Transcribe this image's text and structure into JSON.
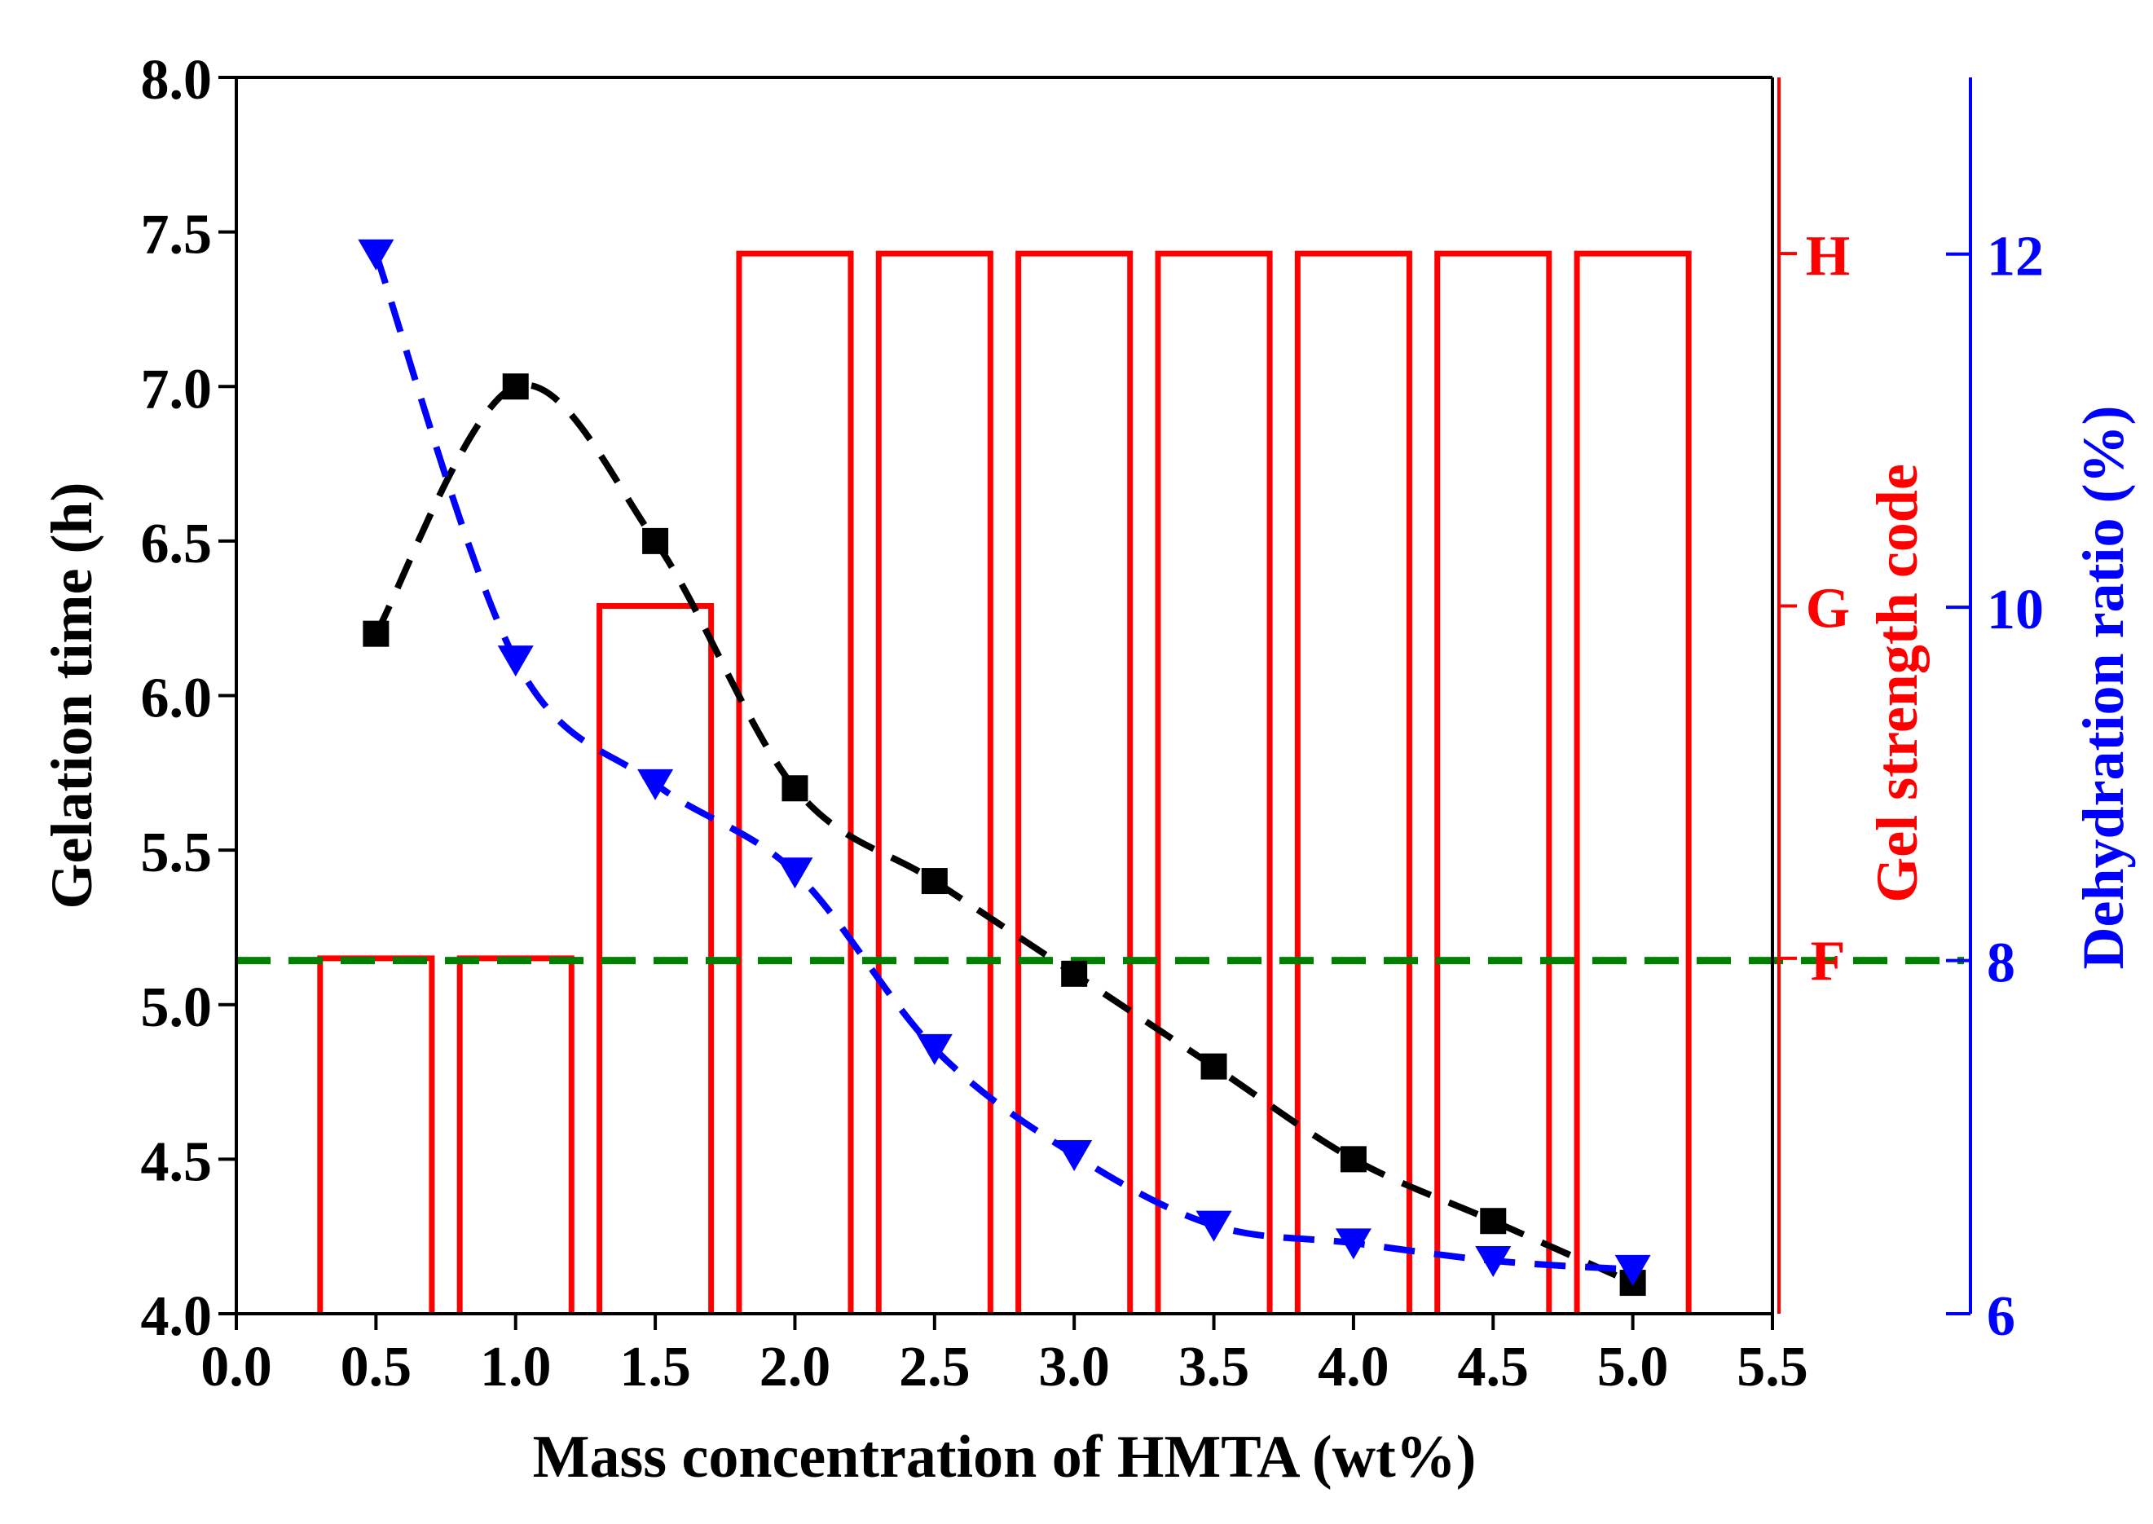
{
  "chart_data": {
    "type": "bar+line",
    "title": "",
    "xlabel": "Mass concentration of HMTA (wt%)",
    "xlim": [
      0.0,
      5.5
    ],
    "x_ticks": [
      "0.0",
      "0.5",
      "1.0",
      "1.5",
      "2.0",
      "2.5",
      "3.0",
      "3.5",
      "4.0",
      "4.5",
      "5.0",
      "5.5"
    ],
    "y_left": {
      "label": "Gelation time (h)",
      "ylim": [
        4.0,
        8.0
      ],
      "ticks": [
        "4.0",
        "4.5",
        "5.0",
        "5.5",
        "6.0",
        "6.5",
        "7.0",
        "7.5",
        "8.0"
      ],
      "color": "#000000"
    },
    "y_right1": {
      "label": "Gel strength code",
      "ticks": [
        "F",
        "G",
        "H"
      ],
      "tick_values_left_units": [
        5.15,
        6.29,
        7.43
      ],
      "color": "#ff0000"
    },
    "y_right2": {
      "label": "Dehydration ratio (%)",
      "ylim": [
        6,
        13
      ],
      "ticks": [
        "6",
        "8",
        "10",
        "12"
      ],
      "color": "#0000ff"
    },
    "bars": {
      "name": "Gel strength code",
      "color": "#ff0000",
      "x": [
        0.5,
        1.0,
        1.5,
        2.0,
        2.5,
        3.0,
        3.5,
        4.0,
        4.5,
        5.0
      ],
      "codes": [
        "F",
        "F",
        "G",
        "H",
        "H",
        "H",
        "H",
        "H",
        "H",
        "H"
      ],
      "width": 0.4
    },
    "series": [
      {
        "name": "Gelation time",
        "axis": "left",
        "color": "#000000",
        "marker": "square",
        "x": [
          0.5,
          1.0,
          1.5,
          2.0,
          2.5,
          3.0,
          3.5,
          4.0,
          4.5,
          5.0
        ],
        "values": [
          6.2,
          7.0,
          6.5,
          5.7,
          5.4,
          5.1,
          4.8,
          4.5,
          4.3,
          4.1
        ]
      },
      {
        "name": "Dehydration ratio",
        "axis": "right2",
        "color": "#0000ff",
        "marker": "triangle-down",
        "x": [
          0.5,
          1.0,
          1.5,
          2.0,
          2.5,
          3.0,
          3.5,
          4.0,
          4.5,
          5.0
        ],
        "values": [
          12.0,
          9.7,
          9.0,
          8.5,
          7.5,
          6.9,
          6.5,
          6.4,
          6.3,
          6.25
        ]
      }
    ],
    "reference_line": {
      "color": "#008000",
      "style": "dashed",
      "value_right2": 8.0
    }
  }
}
